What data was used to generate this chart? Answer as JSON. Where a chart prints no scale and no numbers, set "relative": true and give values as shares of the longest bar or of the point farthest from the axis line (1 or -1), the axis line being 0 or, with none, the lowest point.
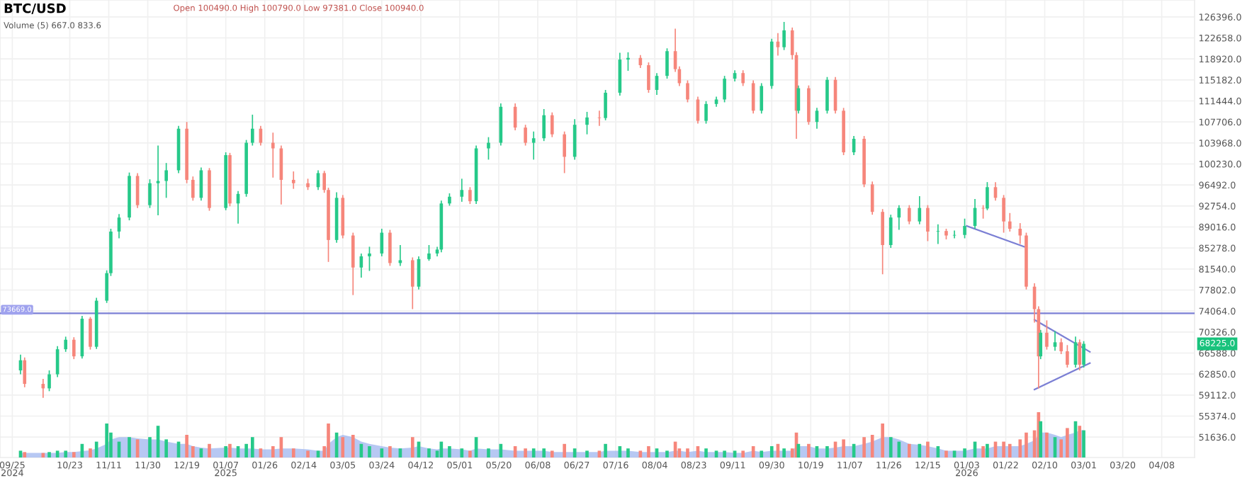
{
  "chart_data": [
    {
      "type": "candlestick",
      "title": "BTC/USD",
      "annotations": [
        "Open 100490.0 High 100790.0 Low 97381.0 Close 100940.0",
        "Volume (5) 667.0 833.6",
        "68225.0"
      ],
      "x": [
        "2024-09-29",
        "2024-10-01",
        "2024-10-10",
        "2024-10-13",
        "2024-10-17",
        "2024-10-21",
        "2024-10-25",
        "2024-10-29",
        "2024-11-02",
        "2024-11-05",
        "2024-11-10",
        "2024-11-12",
        "2024-11-16",
        "2024-11-21",
        "2024-11-25",
        "2024-12-01",
        "2024-12-05",
        "2024-12-09",
        "2024-12-15",
        "2024-12-19",
        "2024-12-22",
        "2024-12-26",
        "2024-12-30",
        "2025-01-07",
        "2025-01-09",
        "2025-01-13",
        "2025-01-17",
        "2025-01-20",
        "2025-01-24",
        "2025-01-30",
        "2025-02-03",
        "2025-02-09",
        "2025-02-16",
        "2025-02-21",
        "2025-02-24",
        "2025-02-26",
        "2025-03-02",
        "2025-03-05",
        "2025-03-10",
        "2025-03-14",
        "2025-03-18",
        "2025-03-24",
        "2025-03-28",
        "2025-04-02",
        "2025-04-08",
        "2025-04-11",
        "2025-04-16",
        "2025-04-20",
        "2025-04-22",
        "2025-04-26",
        "2025-05-02",
        "2025-05-06",
        "2025-05-09",
        "2025-05-15",
        "2025-05-21",
        "2025-05-28",
        "2025-06-02",
        "2025-06-06",
        "2025-06-11",
        "2025-06-15",
        "2025-06-21",
        "2025-06-26",
        "2025-07-02",
        "2025-07-08",
        "2025-07-11",
        "2025-07-18",
        "2025-07-22",
        "2025-07-28",
        "2025-08-01",
        "2025-08-05",
        "2025-08-10",
        "2025-08-14",
        "2025-08-16",
        "2025-08-20",
        "2025-08-25",
        "2025-08-29",
        "2025-09-03",
        "2025-09-07",
        "2025-09-12",
        "2025-09-16",
        "2025-09-21",
        "2025-09-25",
        "2025-09-30",
        "2025-10-03",
        "2025-10-06",
        "2025-10-10",
        "2025-10-12",
        "2025-10-13",
        "2025-10-18",
        "2025-10-22",
        "2025-10-27",
        "2025-10-31",
        "2025-11-04",
        "2025-11-09",
        "2025-11-14",
        "2025-11-18",
        "2025-11-23",
        "2025-11-27",
        "2025-12-01",
        "2025-12-06",
        "2025-12-11",
        "2025-12-15",
        "2025-12-20",
        "2025-12-24",
        "2025-12-28",
        "2026-01-02",
        "2026-01-07",
        "2026-01-11",
        "2026-01-13",
        "2026-01-17",
        "2026-01-21",
        "2026-01-24",
        "2026-01-29",
        "2026-02-01",
        "2026-02-05",
        "2026-02-07",
        "2026-02-08",
        "2026-02-11",
        "2026-02-15",
        "2026-02-18",
        "2026-02-21",
        "2026-02-25",
        "2026-02-27",
        "2026-03-01"
      ],
      "ohlc": [
        [
          63500,
          66300,
          62800,
          65300
        ],
        [
          65300,
          65800,
          60500,
          61100
        ],
        [
          61100,
          62000,
          58630,
          60300
        ],
        [
          60300,
          63500,
          59800,
          62800
        ],
        [
          62800,
          67800,
          62300,
          67260
        ],
        [
          67260,
          69500,
          66800,
          68950
        ],
        [
          68950,
          69400,
          65500,
          66000
        ],
        [
          66000,
          73200,
          65600,
          72700
        ],
        [
          72700,
          73000,
          67200,
          67700
        ],
        [
          67700,
          76400,
          67300,
          75900
        ],
        [
          75900,
          81300,
          75500,
          80800
        ],
        [
          80800,
          88700,
          80300,
          88200
        ],
        [
          88200,
          91300,
          87000,
          90700
        ],
        [
          90700,
          98700,
          90200,
          98100
        ],
        [
          98100,
          98600,
          92400,
          92900
        ],
        [
          92900,
          97500,
          92400,
          96800
        ],
        [
          96800,
          103500,
          91100,
          97200
        ],
        [
          97200,
          100400,
          94200,
          99100
        ],
        [
          99100,
          107000,
          98600,
          106500
        ],
        [
          106500,
          107700,
          96800,
          97400
        ],
        [
          97400,
          98000,
          93700,
          94200
        ],
        [
          94200,
          99600,
          93700,
          99100
        ],
        [
          99100,
          99500,
          91900,
          92400
        ],
        [
          92400,
          102300,
          92000,
          101800
        ],
        [
          101800,
          102200,
          92700,
          93200
        ],
        [
          93200,
          95400,
          89600,
          94900
        ],
        [
          94900,
          104500,
          94400,
          104000
        ],
        [
          104000,
          109000,
          103500,
          106500
        ],
        [
          106500,
          107000,
          103500,
          104000
        ],
        [
          104000,
          105800,
          97800,
          103000
        ],
        [
          103000,
          103500,
          93000,
          97400
        ],
        [
          97400,
          98900,
          95800,
          96800
        ],
        [
          96800,
          97600,
          95600,
          96100
        ],
        [
          96100,
          99100,
          95600,
          98600
        ],
        [
          98600,
          99000,
          95100,
          95600
        ],
        [
          95600,
          96000,
          82800,
          86700
        ],
        [
          86700,
          95200,
          86200,
          94200
        ],
        [
          94200,
          94700,
          87000,
          87500
        ],
        [
          87500,
          88000,
          76900,
          81800
        ],
        [
          81800,
          84300,
          80000,
          83800
        ],
        [
          83800,
          85500,
          81200,
          84300
        ],
        [
          84300,
          88700,
          83800,
          88000
        ],
        [
          88000,
          88500,
          82100,
          82600
        ],
        [
          82600,
          85800,
          82100,
          83100
        ],
        [
          83100,
          83600,
          74400,
          78400
        ],
        [
          78400,
          83800,
          77900,
          83300
        ],
        [
          83300,
          85800,
          83000,
          84300
        ],
        [
          84300,
          85500,
          83800,
          85000
        ],
        [
          85000,
          93700,
          84500,
          93200
        ],
        [
          93200,
          95000,
          92800,
          94400
        ],
        [
          94400,
          97600,
          93500,
          95600
        ],
        [
          95600,
          96100,
          93100,
          93600
        ],
        [
          93600,
          103500,
          93100,
          103000
        ],
        [
          103000,
          105000,
          101000,
          104000
        ],
        [
          104000,
          111000,
          103500,
          110400
        ],
        [
          110400,
          111000,
          106200,
          106700
        ],
        [
          106700,
          107200,
          103500,
          104000
        ],
        [
          104000,
          106000,
          101000,
          104800
        ],
        [
          104800,
          110000,
          104300,
          108900
        ],
        [
          108900,
          109400,
          105000,
          105500
        ],
        [
          105500,
          106000,
          98600,
          101500
        ],
        [
          101500,
          108200,
          101000,
          107200
        ],
        [
          107200,
          109500,
          105500,
          108500
        ],
        [
          108500,
          109700,
          107000,
          108400
        ],
        [
          108400,
          113400,
          108000,
          112900
        ],
        [
          112900,
          120000,
          112400,
          118800
        ],
        [
          118800,
          120100,
          116800,
          119100
        ],
        [
          119100,
          119600,
          117300,
          117800
        ],
        [
          117800,
          118300,
          112900,
          113400
        ],
        [
          113400,
          116400,
          112500,
          115900
        ],
        [
          115900,
          120800,
          115400,
          120300
        ],
        [
          120300,
          124300,
          116600,
          117100
        ],
        [
          117100,
          117600,
          114100,
          114600
        ],
        [
          114600,
          115100,
          111200,
          111700
        ],
        [
          111700,
          112200,
          107400,
          107900
        ],
        [
          107900,
          111400,
          107400,
          110900
        ],
        [
          110900,
          112200,
          110400,
          111700
        ],
        [
          111700,
          115900,
          111200,
          115400
        ],
        [
          115400,
          116900,
          114900,
          116400
        ],
        [
          116400,
          116900,
          114100,
          114600
        ],
        [
          114600,
          115100,
          109200,
          109700
        ],
        [
          109700,
          114600,
          109200,
          114100
        ],
        [
          114100,
          122500,
          113600,
          122000
        ],
        [
          122000,
          123500,
          119500,
          121000
        ],
        [
          121000,
          125500,
          120500,
          124000
        ],
        [
          124000,
          124500,
          118800,
          119600
        ],
        [
          119600,
          120100,
          104700,
          109700
        ],
        [
          109700,
          114200,
          109200,
          113700
        ],
        [
          113700,
          114200,
          107200,
          107700
        ],
        [
          107700,
          110200,
          106500,
          109700
        ],
        [
          109700,
          115700,
          109200,
          115200
        ],
        [
          115200,
          115700,
          109200,
          109700
        ],
        [
          109700,
          110200,
          101800,
          102300
        ],
        [
          102300,
          105200,
          101800,
          104700
        ],
        [
          104700,
          105200,
          96100,
          96600
        ],
        [
          96600,
          97100,
          91200,
          91700
        ],
        [
          91700,
          92200,
          80600,
          85800
        ],
        [
          85800,
          91200,
          85300,
          90700
        ],
        [
          90700,
          92900,
          88500,
          92400
        ],
        [
          92400,
          92900,
          89500,
          90000
        ],
        [
          90000,
          94500,
          89500,
          92400
        ],
        [
          92400,
          92900,
          86500,
          88200
        ],
        [
          88200,
          89500,
          86000,
          88300
        ],
        [
          88300,
          88700,
          86800,
          87500
        ],
        [
          87500,
          88400,
          87000,
          87600
        ],
        [
          87600,
          90500,
          87000,
          89200
        ],
        [
          89200,
          94000,
          88700,
          92400
        ],
        [
          92400,
          92900,
          90500,
          92300
        ],
        [
          92300,
          97000,
          92000,
          96100
        ],
        [
          96100,
          97000,
          93700,
          94200
        ],
        [
          94200,
          94700,
          88000,
          90000
        ],
        [
          90000,
          91500,
          88200,
          88700
        ],
        [
          88700,
          89700,
          86000,
          87500
        ],
        [
          87500,
          88000,
          77900,
          78400
        ],
        [
          78400,
          79000,
          72000,
          74400
        ],
        [
          74400,
          74900,
          60300,
          66000
        ],
        [
          66000,
          70700,
          65500,
          70200
        ],
        [
          70200,
          72400,
          67200,
          67700
        ],
        [
          67700,
          70500,
          67000,
          68500
        ],
        [
          68500,
          69200,
          66400,
          66900
        ],
        [
          66900,
          68000,
          64000,
          64500
        ],
        [
          64500,
          69500,
          64000,
          68500
        ],
        [
          68500,
          69000,
          63500,
          64500
        ],
        [
          64500,
          68700,
          64000,
          68225
        ]
      ],
      "colors": [
        "#26c989",
        "#f6867b",
        "#f6867b",
        "#26c989",
        "#26c989",
        "#26c989",
        "#f6867b",
        "#26c989",
        "#f6867b",
        "#26c989",
        "#26c989",
        "#26c989",
        "#26c989",
        "#26c989",
        "#f6867b",
        "#26c989",
        "#26c989",
        "#26c989",
        "#26c989",
        "#f6867b",
        "#f6867b",
        "#26c989",
        "#f6867b",
        "#26c989",
        "#f6867b",
        "#26c989",
        "#26c989",
        "#26c989",
        "#f6867b",
        "#f6867b",
        "#f6867b",
        "#f6867b",
        "#f6867b",
        "#26c989",
        "#f6867b",
        "#f6867b",
        "#26c989",
        "#f6867b",
        "#f6867b",
        "#26c989",
        "#26c989",
        "#26c989",
        "#f6867b",
        "#26c989",
        "#f6867b",
        "#26c989",
        "#26c989",
        "#26c989",
        "#26c989",
        "#26c989",
        "#26c989",
        "#f6867b",
        "#26c989",
        "#26c989",
        "#26c989",
        "#f6867b",
        "#f6867b",
        "#26c989",
        "#26c989",
        "#f6867b",
        "#f6867b",
        "#26c989",
        "#26c989",
        "#f6867b",
        "#26c989",
        "#26c989",
        "#26c989",
        "#f6867b",
        "#f6867b",
        "#26c989",
        "#26c989",
        "#f6867b",
        "#f6867b",
        "#f6867b",
        "#f6867b",
        "#26c989",
        "#26c989",
        "#26c989",
        "#26c989",
        "#f6867b",
        "#f6867b",
        "#26c989",
        "#26c989",
        "#f6867b",
        "#26c989",
        "#f6867b",
        "#f6867b",
        "#26c989",
        "#f6867b",
        "#26c989",
        "#26c989",
        "#f6867b",
        "#f6867b",
        "#26c989",
        "#f6867b",
        "#f6867b",
        "#f6867b",
        "#26c989",
        "#26c989",
        "#f6867b",
        "#26c989",
        "#f6867b",
        "#26c989",
        "#f6867b",
        "#26c989",
        "#26c989",
        "#26c989",
        "#f6867b",
        "#26c989",
        "#f6867b",
        "#f6867b",
        "#f6867b",
        "#f6867b",
        "#f6867b",
        "#f6867b",
        "#f6867b",
        "#26c989",
        "#f6867b",
        "#26c989",
        "#f6867b",
        "#f6867b",
        "#26c989",
        "#f6867b",
        "#26c989"
      ],
      "series": [
        {
          "type": "line",
          "color": "#7b7fd4",
          "x": [
            "2026-01-03",
            "2026-01-31"
          ],
          "values": [
            89200,
            85500
          ]
        },
        {
          "type": "line",
          "color": "#7b7fd4",
          "x": [
            "2026-02-05",
            "2026-03-04"
          ],
          "values": [
            72500,
            66800
          ]
        },
        {
          "type": "line",
          "color": "#7b7fd4",
          "x": [
            "2026-02-05",
            "2026-03-04"
          ],
          "values": [
            60100,
            64800
          ]
        }
      ],
      "ref_lines": [
        {
          "axis": "y",
          "value": 73669,
          "label": "73669.0",
          "color": "#7b7fd4"
        }
      ],
      "xlim": [
        "2024-09-19",
        "2026-04-24"
      ],
      "xticks": [
        {
          "value": "2024-09-25",
          "label": "09/25\n2024"
        },
        {
          "value": "2024-10-23",
          "label": "10/23"
        },
        {
          "value": "2024-11-11",
          "label": "11/11"
        },
        {
          "value": "2024-11-30",
          "label": "11/30"
        },
        {
          "value": "2024-12-19",
          "label": "12/19"
        },
        {
          "value": "2025-01-07",
          "label": "01/07\n2025"
        },
        {
          "value": "2025-01-26",
          "label": "01/26"
        },
        {
          "value": "2025-02-14",
          "label": "02/14"
        },
        {
          "value": "2025-03-05",
          "label": "03/05"
        },
        {
          "value": "2025-03-24",
          "label": "03/24"
        },
        {
          "value": "2025-04-12",
          "label": "04/12"
        },
        {
          "value": "2025-05-01",
          "label": "05/01"
        },
        {
          "value": "2025-05-20",
          "label": "05/20"
        },
        {
          "value": "2025-06-08",
          "label": "06/08"
        },
        {
          "value": "2025-06-27",
          "label": "06/27"
        },
        {
          "value": "2025-07-16",
          "label": "07/16"
        },
        {
          "value": "2025-08-04",
          "label": "08/04"
        },
        {
          "value": "2025-08-23",
          "label": "08/23"
        },
        {
          "value": "2025-09-11",
          "label": "09/11"
        },
        {
          "value": "2025-09-30",
          "label": "09/30"
        },
        {
          "value": "2025-10-19",
          "label": "10/19"
        },
        {
          "value": "2025-11-07",
          "label": "11/07"
        },
        {
          "value": "2025-11-26",
          "label": "11/26"
        },
        {
          "value": "2025-12-15",
          "label": "12/15"
        },
        {
          "value": "2026-01-03",
          "label": "01/03\n2026"
        },
        {
          "value": "2026-01-22",
          "label": "01/22"
        },
        {
          "value": "2026-02-10",
          "label": "02/10"
        },
        {
          "value": "2026-03-01",
          "label": "03/01"
        },
        {
          "value": "2026-03-20",
          "label": "03/20"
        },
        {
          "value": "2026-04-08",
          "label": "04/08"
        }
      ],
      "ylim": [
        48000,
        129400
      ],
      "yticks": [
        {
          "value": 126396,
          "label": "126396.0"
        },
        {
          "value": 122658,
          "label": "122658.0"
        },
        {
          "value": 118920,
          "label": "118920.0"
        },
        {
          "value": 115182,
          "label": "115182.0"
        },
        {
          "value": 111444,
          "label": "111444.0"
        },
        {
          "value": 107706,
          "label": "107706.0"
        },
        {
          "value": 103968,
          "label": "103968.0"
        },
        {
          "value": 100230,
          "label": "100230.0"
        },
        {
          "value": 96492,
          "label": "96492.0"
        },
        {
          "value": 92754,
          "label": "92754.0"
        },
        {
          "value": 89016,
          "label": "89016.0"
        },
        {
          "value": 85278,
          "label": "85278.0"
        },
        {
          "value": 81540,
          "label": "81540.0"
        },
        {
          "value": 77802,
          "label": "77802.0"
        },
        {
          "value": 74064,
          "label": "74064.0"
        },
        {
          "value": 70326,
          "label": "70326.0"
        },
        {
          "value": 66588,
          "label": "66588.0"
        },
        {
          "value": 62850,
          "label": "62850.0"
        },
        {
          "value": 59112,
          "label": "59112.0"
        },
        {
          "value": 55374,
          "label": "55374.0"
        },
        {
          "value": 51636,
          "label": "51636.0"
        }
      ],
      "grid": true
    },
    {
      "type": "bar",
      "relative": true,
      "tick_labels": false,
      "x": [
        "2024-09-29",
        "2024-10-01",
        "2024-10-10",
        "2024-10-13",
        "2024-10-17",
        "2024-10-21",
        "2024-10-25",
        "2024-10-29",
        "2024-11-02",
        "2024-11-05",
        "2024-11-10",
        "2024-11-12",
        "2024-11-16",
        "2024-11-21",
        "2024-11-25",
        "2024-12-01",
        "2024-12-05",
        "2024-12-09",
        "2024-12-15",
        "2024-12-19",
        "2024-12-22",
        "2024-12-26",
        "2024-12-30",
        "2025-01-07",
        "2025-01-09",
        "2025-01-13",
        "2025-01-17",
        "2025-01-20",
        "2025-01-24",
        "2025-01-30",
        "2025-02-03",
        "2025-02-09",
        "2025-02-16",
        "2025-02-21",
        "2025-02-24",
        "2025-02-26",
        "2025-03-02",
        "2025-03-05",
        "2025-03-10",
        "2025-03-14",
        "2025-03-18",
        "2025-03-24",
        "2025-03-28",
        "2025-04-02",
        "2025-04-08",
        "2025-04-11",
        "2025-04-16",
        "2025-04-20",
        "2025-04-22",
        "2025-04-26",
        "2025-05-02",
        "2025-05-06",
        "2025-05-09",
        "2025-05-15",
        "2025-05-21",
        "2025-05-28",
        "2025-06-02",
        "2025-06-06",
        "2025-06-11",
        "2025-06-15",
        "2025-06-21",
        "2025-06-26",
        "2025-07-02",
        "2025-07-08",
        "2025-07-11",
        "2025-07-18",
        "2025-07-22",
        "2025-07-28",
        "2025-08-01",
        "2025-08-05",
        "2025-08-10",
        "2025-08-14",
        "2025-08-16",
        "2025-08-20",
        "2025-08-25",
        "2025-08-29",
        "2025-09-03",
        "2025-09-07",
        "2025-09-12",
        "2025-09-16",
        "2025-09-21",
        "2025-09-25",
        "2025-09-30",
        "2025-10-03",
        "2025-10-06",
        "2025-10-10",
        "2025-10-12",
        "2025-10-13",
        "2025-10-18",
        "2025-10-22",
        "2025-10-27",
        "2025-10-31",
        "2025-11-04",
        "2025-11-09",
        "2025-11-14",
        "2025-11-18",
        "2025-11-23",
        "2025-11-27",
        "2025-12-01",
        "2025-12-06",
        "2025-12-11",
        "2025-12-15",
        "2025-12-20",
        "2025-12-24",
        "2025-12-28",
        "2026-01-02",
        "2026-01-07",
        "2026-01-11",
        "2026-01-13",
        "2026-01-17",
        "2026-01-21",
        "2026-01-24",
        "2026-01-29",
        "2026-02-01",
        "2026-02-05",
        "2026-02-07",
        "2026-02-08",
        "2026-02-11",
        "2026-02-15",
        "2026-02-18",
        "2026-02-21",
        "2026-02-25",
        "2026-02-27",
        "2026-03-01"
      ],
      "xlim": [
        "2024-09-19",
        "2026-04-24"
      ],
      "series": [
        {
          "type": "area",
          "color": "#9fb6ef",
          "values": [
            0.1,
            0.1,
            0.1,
            0.1,
            0.1,
            0.12,
            0.12,
            0.14,
            0.16,
            0.2,
            0.3,
            0.4,
            0.45,
            0.45,
            0.42,
            0.4,
            0.4,
            0.35,
            0.3,
            0.3,
            0.25,
            0.22,
            0.2,
            0.22,
            0.22,
            0.2,
            0.2,
            0.2,
            0.18,
            0.18,
            0.2,
            0.2,
            0.18,
            0.15,
            0.15,
            0.3,
            0.45,
            0.5,
            0.45,
            0.35,
            0.3,
            0.25,
            0.22,
            0.2,
            0.22,
            0.25,
            0.2,
            0.18,
            0.2,
            0.2,
            0.18,
            0.15,
            0.2,
            0.18,
            0.18,
            0.15,
            0.15,
            0.15,
            0.15,
            0.12,
            0.12,
            0.12,
            0.12,
            0.12,
            0.15,
            0.15,
            0.15,
            0.12,
            0.12,
            0.12,
            0.12,
            0.15,
            0.15,
            0.12,
            0.15,
            0.12,
            0.12,
            0.12,
            0.1,
            0.1,
            0.15,
            0.12,
            0.15,
            0.15,
            0.15,
            0.15,
            0.25,
            0.25,
            0.25,
            0.2,
            0.2,
            0.22,
            0.25,
            0.25,
            0.3,
            0.35,
            0.45,
            0.45,
            0.4,
            0.3,
            0.28,
            0.25,
            0.2,
            0.15,
            0.15,
            0.15,
            0.2,
            0.2,
            0.2,
            0.25,
            0.25,
            0.25,
            0.25,
            0.3,
            0.38,
            0.5,
            0.55,
            0.55,
            0.5,
            0.45,
            0.5,
            0.55,
            0.6,
            0.6
          ]
        },
        {
          "type": "bar",
          "values": [
            0.15,
            0.12,
            0.1,
            0.12,
            0.15,
            0.15,
            0.12,
            0.3,
            0.2,
            0.35,
            0.75,
            0.55,
            0.35,
            0.45,
            0.4,
            0.45,
            0.7,
            0.4,
            0.35,
            0.5,
            0.25,
            0.2,
            0.3,
            0.25,
            0.3,
            0.25,
            0.3,
            0.45,
            0.2,
            0.25,
            0.45,
            0.2,
            0.15,
            0.15,
            0.25,
            0.75,
            0.55,
            0.45,
            0.5,
            0.3,
            0.25,
            0.2,
            0.25,
            0.2,
            0.45,
            0.35,
            0.2,
            0.15,
            0.35,
            0.25,
            0.2,
            0.15,
            0.45,
            0.2,
            0.3,
            0.25,
            0.2,
            0.2,
            0.2,
            0.15,
            0.3,
            0.2,
            0.15,
            0.15,
            0.3,
            0.25,
            0.2,
            0.15,
            0.25,
            0.2,
            0.15,
            0.35,
            0.2,
            0.2,
            0.25,
            0.2,
            0.15,
            0.15,
            0.15,
            0.15,
            0.25,
            0.15,
            0.25,
            0.3,
            0.2,
            0.2,
            0.55,
            0.3,
            0.3,
            0.25,
            0.25,
            0.35,
            0.4,
            0.3,
            0.45,
            0.5,
            0.75,
            0.45,
            0.35,
            0.3,
            0.3,
            0.35,
            0.25,
            0.15,
            0.15,
            0.2,
            0.35,
            0.25,
            0.3,
            0.35,
            0.35,
            0.3,
            0.4,
            0.55,
            0.6,
            1,
            0.8,
            0.55,
            0.45,
            0.4,
            0.65,
            0.8,
            0.7,
            0.6
          ],
          "colors": [
            "#26c989",
            "#f6867b",
            "#f6867b",
            "#26c989",
            "#26c989",
            "#26c989",
            "#f6867b",
            "#26c989",
            "#f6867b",
            "#26c989",
            "#26c989",
            "#26c989",
            "#26c989",
            "#26c989",
            "#f6867b",
            "#26c989",
            "#26c989",
            "#26c989",
            "#26c989",
            "#f6867b",
            "#f6867b",
            "#26c989",
            "#f6867b",
            "#26c989",
            "#f6867b",
            "#26c989",
            "#26c989",
            "#26c989",
            "#f6867b",
            "#f6867b",
            "#f6867b",
            "#f6867b",
            "#f6867b",
            "#26c989",
            "#f6867b",
            "#f6867b",
            "#26c989",
            "#f6867b",
            "#f6867b",
            "#26c989",
            "#26c989",
            "#26c989",
            "#f6867b",
            "#26c989",
            "#f6867b",
            "#26c989",
            "#26c989",
            "#26c989",
            "#26c989",
            "#26c989",
            "#26c989",
            "#f6867b",
            "#26c989",
            "#26c989",
            "#26c989",
            "#f6867b",
            "#f6867b",
            "#26c989",
            "#26c989",
            "#f6867b",
            "#f6867b",
            "#26c989",
            "#26c989",
            "#f6867b",
            "#26c989",
            "#26c989",
            "#26c989",
            "#f6867b",
            "#f6867b",
            "#26c989",
            "#26c989",
            "#f6867b",
            "#f6867b",
            "#f6867b",
            "#f6867b",
            "#26c989",
            "#26c989",
            "#26c989",
            "#26c989",
            "#f6867b",
            "#f6867b",
            "#26c989",
            "#26c989",
            "#f6867b",
            "#26c989",
            "#f6867b",
            "#f6867b",
            "#26c989",
            "#f6867b",
            "#26c989",
            "#26c989",
            "#f6867b",
            "#f6867b",
            "#26c989",
            "#f6867b",
            "#f6867b",
            "#f6867b",
            "#26c989",
            "#26c989",
            "#f6867b",
            "#26c989",
            "#f6867b",
            "#26c989",
            "#f6867b",
            "#26c989",
            "#26c989",
            "#26c989",
            "#f6867b",
            "#26c989",
            "#f6867b",
            "#f6867b",
            "#f6867b",
            "#f6867b",
            "#f6867b",
            "#f6867b",
            "#f6867b",
            "#26c989",
            "#f6867b",
            "#26c989",
            "#f6867b",
            "#f6867b",
            "#26c989",
            "#f6867b",
            "#26c989"
          ]
        }
      ]
    }
  ]
}
